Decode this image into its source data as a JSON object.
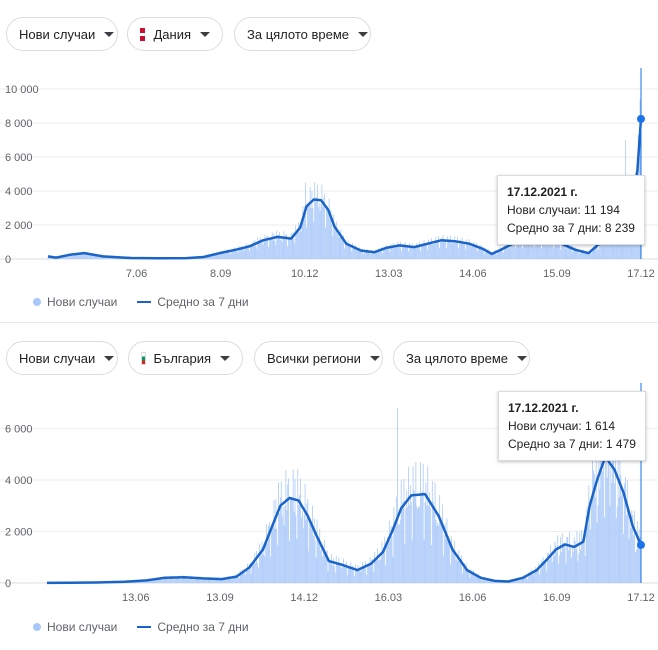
{
  "colors": {
    "bar": "#aecbfa",
    "line": "#1a64c8",
    "grid": "#eeeeee",
    "cursor": "#1a73e8"
  },
  "legend": {
    "new_cases": "Нови случаи",
    "avg7": "Средно за 7 дни"
  },
  "panels": [
    {
      "metric_chip": "Нови случаи",
      "country_chip": "Дания",
      "country_flag": "dk-flag-icon",
      "period_chip": "За цялото време",
      "tooltip": {
        "date": "17.12.2021 г.",
        "new_cases": "Нови случаи: 11 194",
        "avg7": "Средно за 7 дни: 8 239"
      }
    },
    {
      "metric_chip": "Нови случаи",
      "country_chip": "България",
      "country_flag": "bg-flag-icon",
      "region_chip": "Всички региони",
      "period_chip": "За цялото време",
      "tooltip": {
        "date": "17.12.2021 г.",
        "new_cases": "Нови случаи: 1 614",
        "avg7": "Средно за 7 дни: 1 479"
      }
    }
  ],
  "chart_data": [
    {
      "type": "bar",
      "country": "Дания",
      "x_start": "2020-03-01",
      "x_end": "2021-12-17",
      "ylim": [
        0,
        10000
      ],
      "yticks": [
        0,
        2000,
        4000,
        6000,
        8000,
        10000
      ],
      "ytick_labels": [
        "0",
        "2 000",
        "4 000",
        "6 000",
        "8 000",
        "10 000"
      ],
      "xticks": [
        "7.06",
        "8.09",
        "10.12",
        "13.03",
        "14.06",
        "15.09",
        "17.12"
      ],
      "xtick_dates": [
        "2020-06-07",
        "2020-09-08",
        "2020-12-10",
        "2021-03-13",
        "2021-06-14",
        "2021-09-15",
        "2021-12-17"
      ],
      "series": [
        {
          "name": "Средно за 7 дни",
          "x": [
            "2020-03-01",
            "2020-03-10",
            "2020-03-25",
            "2020-04-10",
            "2020-05-01",
            "2020-06-01",
            "2020-07-01",
            "2020-08-01",
            "2020-08-20",
            "2020-09-10",
            "2020-09-25",
            "2020-10-10",
            "2020-10-25",
            "2020-11-10",
            "2020-11-25",
            "2020-12-05",
            "2020-12-12",
            "2020-12-20",
            "2020-12-28",
            "2021-01-05",
            "2021-01-12",
            "2021-01-25",
            "2021-02-10",
            "2021-02-25",
            "2021-03-10",
            "2021-03-25",
            "2021-04-10",
            "2021-04-25",
            "2021-05-10",
            "2021-05-25",
            "2021-06-10",
            "2021-06-25",
            "2021-07-05",
            "2021-07-15",
            "2021-08-01",
            "2021-08-20",
            "2021-09-05",
            "2021-09-20",
            "2021-10-05",
            "2021-10-20",
            "2021-11-01",
            "2021-11-10",
            "2021-11-20",
            "2021-11-30",
            "2021-12-08",
            "2021-12-13",
            "2021-12-17"
          ],
          "values": [
            150,
            80,
            250,
            350,
            150,
            60,
            40,
            50,
            120,
            380,
            550,
            750,
            1100,
            1300,
            1200,
            1850,
            3100,
            3500,
            3450,
            2900,
            1900,
            900,
            500,
            400,
            650,
            800,
            700,
            900,
            1100,
            1050,
            900,
            600,
            300,
            550,
            1000,
            1100,
            1000,
            900,
            550,
            350,
            900,
            1300,
            1800,
            3000,
            3800,
            5200,
            8239
          ]
        }
      ]
    },
    {
      "type": "bar",
      "country": "България",
      "x_start": "2020-03-08",
      "x_end": "2021-12-17",
      "ylim": [
        0,
        6600
      ],
      "yticks": [
        0,
        2000,
        4000,
        6000
      ],
      "ytick_labels": [
        "0",
        "2 000",
        "4 000",
        "6 000"
      ],
      "xticks": [
        "13.06",
        "13.09",
        "14.12",
        "16.03",
        "16.06",
        "16.09",
        "17.12"
      ],
      "xtick_dates": [
        "2020-06-13",
        "2020-09-13",
        "2020-12-14",
        "2021-03-16",
        "2021-06-16",
        "2021-09-16",
        "2021-12-17"
      ],
      "series": [
        {
          "name": "Средно за 7 дни",
          "x": [
            "2020-03-08",
            "2020-04-01",
            "2020-05-01",
            "2020-06-01",
            "2020-06-25",
            "2020-07-15",
            "2020-08-05",
            "2020-08-25",
            "2020-09-15",
            "2020-10-01",
            "2020-10-15",
            "2020-10-30",
            "2020-11-10",
            "2020-11-18",
            "2020-11-28",
            "2020-12-08",
            "2020-12-18",
            "2020-12-28",
            "2021-01-10",
            "2021-01-25",
            "2021-02-10",
            "2021-02-25",
            "2021-03-10",
            "2021-03-20",
            "2021-03-30",
            "2021-04-10",
            "2021-04-25",
            "2021-05-10",
            "2021-05-25",
            "2021-06-10",
            "2021-06-25",
            "2021-07-10",
            "2021-07-25",
            "2021-08-10",
            "2021-08-25",
            "2021-09-05",
            "2021-09-15",
            "2021-09-25",
            "2021-10-05",
            "2021-10-15",
            "2021-10-22",
            "2021-10-30",
            "2021-11-08",
            "2021-11-18",
            "2021-11-28",
            "2021-12-08",
            "2021-12-17"
          ],
          "values": [
            5,
            10,
            20,
            50,
            100,
            200,
            220,
            180,
            150,
            250,
            600,
            1300,
            2300,
            3000,
            3300,
            3200,
            2600,
            1800,
            850,
            700,
            500,
            750,
            1200,
            2000,
            2900,
            3400,
            3450,
            2600,
            1300,
            500,
            200,
            80,
            60,
            200,
            500,
            900,
            1300,
            1500,
            1400,
            1600,
            3000,
            4000,
            4900,
            4400,
            3500,
            2200,
            1479
          ]
        }
      ]
    }
  ]
}
